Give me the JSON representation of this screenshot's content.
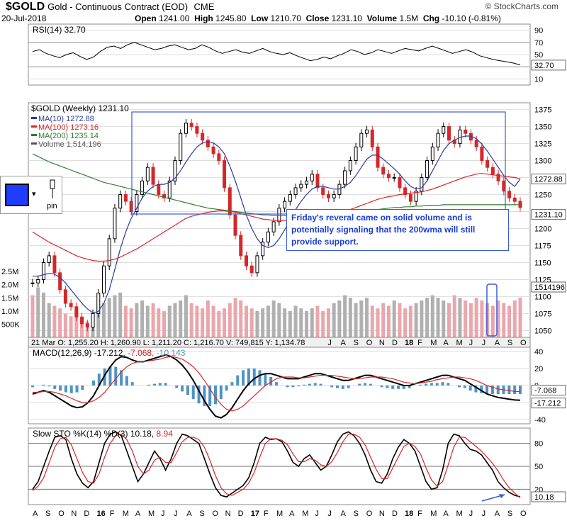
{
  "header": {
    "symbol": "$GOLD",
    "description": "Gold - Continuous Contract (EOD)",
    "exchange": "CME",
    "date": "20-Jul-2018",
    "brand": "© StockCharts.com",
    "open_label": "Open",
    "open": "1241.00",
    "high_label": "High",
    "high": "1245.80",
    "low_label": "Low",
    "low": "1210.70",
    "close_label": "Close",
    "close": "1231.10",
    "volume_label": "Volume",
    "volume": "1.5M",
    "chg_label": "Chg",
    "chg": "-10.10 (-0.81%)"
  },
  "rsi_panel": {
    "label": "RSI(14) 32.70",
    "value_tag": "32.70",
    "ticks": [
      "90",
      "70",
      "50",
      "30",
      "10"
    ]
  },
  "price_panel": {
    "title": "$GOLD (Weekly) 1231.10",
    "legend": [
      {
        "text": "MA(10) 1272.88",
        "color": "#2b3a9c"
      },
      {
        "text": "MA(100) 1273.16",
        "color": "#d62728"
      },
      {
        "text": "MA(200) 1235.14",
        "color": "#2e7d32"
      },
      {
        "text": "Volume 1,514,196",
        "color": "#555555"
      }
    ],
    "tags": [
      "1272.88",
      "1231.10",
      "1514196"
    ],
    "price_ticks": [
      "1375",
      "1350",
      "1325",
      "1300",
      "1275",
      "1250",
      "1225",
      "1200",
      "1175",
      "1150",
      "1125",
      "1100",
      "1075",
      "1050"
    ],
    "volume_ticks": [
      "2.5M",
      "2.0M",
      "1.5M",
      "1.0M",
      "500K"
    ],
    "readout": "21 Mar O: 1,255.20   H: 1,260.90   L: 1,211.20   C: 1,216.70   V: 749,815   Y: 1,134.78"
  },
  "macd_panel": {
    "label": "MACD(12,26,9)",
    "macd": "-17.212",
    "signal": "-7.068",
    "hist": "-10.143",
    "ticks": [
      "40",
      "20",
      "0",
      "-20",
      "-40"
    ],
    "tags": [
      "-7.068",
      "-17.212"
    ]
  },
  "sto_panel": {
    "label": "Slow STO %K(14) %D(3)",
    "k": "10.18",
    "d": "8.94",
    "ticks": [
      "80",
      "50",
      "20"
    ],
    "tag": "10.18"
  },
  "annotation": "Friday's reveral came on solid volume and is potentially signaling that the 200wma will still provide support.",
  "widget": {
    "pin_label": "pin"
  },
  "x_axis": [
    "A",
    "S",
    "O",
    "N",
    "D",
    "16",
    "F",
    "M",
    "A",
    "M",
    "J",
    "J",
    "A",
    "S",
    "O",
    "N",
    "D",
    "17",
    "F",
    "M",
    "A",
    "M",
    "J",
    "J",
    "A",
    "S",
    "O",
    "N",
    "D",
    "18",
    "F",
    "M",
    "A",
    "M",
    "J",
    "J",
    "A",
    "S",
    "O"
  ],
  "chart_data": [
    {
      "type": "line",
      "title": "RSI(14)",
      "ylim": [
        0,
        100
      ],
      "series": [
        {
          "name": "RSI(14)",
          "values": [
            55,
            58,
            52,
            48,
            45,
            50,
            53,
            47,
            42,
            46,
            55,
            62,
            64,
            60,
            66,
            70,
            66,
            62,
            58,
            60,
            64,
            66,
            62,
            58,
            60,
            66,
            62,
            56,
            52,
            55,
            58,
            54,
            52,
            56,
            60,
            55,
            52,
            50,
            53,
            48,
            44,
            40,
            42,
            46,
            43,
            48,
            52,
            58,
            55,
            50,
            53,
            58,
            55,
            52,
            56,
            60,
            58,
            56,
            60,
            64,
            60,
            56,
            52,
            55,
            58,
            54,
            48,
            45,
            42,
            40,
            38,
            36,
            33
          ]
        }
      ]
    },
    {
      "type": "candlestick",
      "title": "$GOLD (Weekly)",
      "ylim": [
        1040,
        1385
      ],
      "series": [
        {
          "name": "Close",
          "values": [
            1120,
            1125,
            1150,
            1160,
            1135,
            1110,
            1090,
            1085,
            1070,
            1060,
            1055,
            1075,
            1105,
            1145,
            1185,
            1230,
            1250,
            1240,
            1225,
            1250,
            1270,
            1290,
            1265,
            1250,
            1245,
            1270,
            1300,
            1340,
            1355,
            1350,
            1340,
            1330,
            1320,
            1310,
            1300,
            1260,
            1220,
            1190,
            1160,
            1145,
            1135,
            1160,
            1180,
            1195,
            1210,
            1230,
            1240,
            1250,
            1260,
            1265,
            1270,
            1280,
            1260,
            1250,
            1245,
            1250,
            1265,
            1285,
            1300,
            1320,
            1340,
            1345,
            1320,
            1290,
            1280,
            1275,
            1275,
            1260,
            1250,
            1240,
            1255,
            1275,
            1300,
            1320,
            1340,
            1350,
            1330,
            1325,
            1345,
            1340,
            1330,
            1320,
            1300,
            1290,
            1280,
            1270,
            1255,
            1245,
            1240,
            1231
          ]
        },
        {
          "name": "MA(10)",
          "values": [
            1130,
            1130,
            1132,
            1134,
            1133,
            1128,
            1120,
            1110,
            1100,
            1090,
            1082,
            1076,
            1078,
            1090,
            1110,
            1140,
            1170,
            1195,
            1215,
            1230,
            1245,
            1255,
            1262,
            1265,
            1265,
            1268,
            1274,
            1285,
            1298,
            1310,
            1320,
            1326,
            1328,
            1326,
            1320,
            1310,
            1292,
            1270,
            1245,
            1220,
            1200,
            1185,
            1175,
            1172,
            1175,
            1185,
            1198,
            1212,
            1228,
            1240,
            1250,
            1258,
            1262,
            1262,
            1260,
            1258,
            1258,
            1262,
            1268,
            1278,
            1290,
            1302,
            1308,
            1308,
            1302,
            1295,
            1288,
            1280,
            1270,
            1262,
            1258,
            1260,
            1270,
            1285,
            1300,
            1315,
            1325,
            1330,
            1334,
            1336,
            1336,
            1332,
            1324,
            1314,
            1302,
            1290,
            1278,
            1268,
            1262,
            1272.88
          ]
        },
        {
          "name": "MA(100)",
          "values": [
            1195,
            1190,
            1185,
            1180,
            1176,
            1172,
            1168,
            1164,
            1160,
            1157,
            1155,
            1153,
            1152,
            1152,
            1153,
            1155,
            1158,
            1162,
            1166,
            1170,
            1175,
            1180,
            1185,
            1190,
            1195,
            1200,
            1205,
            1210,
            1215,
            1218,
            1220,
            1222,
            1224,
            1225,
            1226,
            1226,
            1225,
            1224,
            1222,
            1220,
            1218,
            1216,
            1214,
            1213,
            1212,
            1212,
            1212,
            1213,
            1214,
            1215,
            1216,
            1218,
            1219,
            1220,
            1221,
            1222,
            1224,
            1226,
            1228,
            1231,
            1234,
            1237,
            1240,
            1243,
            1245,
            1247,
            1248,
            1250,
            1251,
            1252,
            1253,
            1254,
            1256,
            1258,
            1261,
            1264,
            1267,
            1270,
            1273,
            1276,
            1278,
            1280,
            1281,
            1280,
            1279,
            1278,
            1277,
            1276,
            1275,
            1273.16
          ]
        },
        {
          "name": "MA(200)",
          "values": [
            1310,
            1306,
            1302,
            1298,
            1295,
            1292,
            1289,
            1286,
            1283,
            1280,
            1277,
            1274,
            1271,
            1268,
            1266,
            1264,
            1262,
            1260,
            1258,
            1256,
            1254,
            1252,
            1250,
            1248,
            1246,
            1244,
            1242,
            1240,
            1238,
            1236,
            1234,
            1232,
            1230,
            1229,
            1228,
            1227,
            1226,
            1225,
            1224,
            1223,
            1222,
            1221,
            1220,
            1220,
            1219,
            1219,
            1219,
            1218,
            1218,
            1218,
            1218,
            1218,
            1219,
            1219,
            1220,
            1220,
            1221,
            1222,
            1223,
            1224,
            1225,
            1226,
            1227,
            1228,
            1229,
            1230,
            1231,
            1231,
            1232,
            1232,
            1233,
            1233,
            1234,
            1234,
            1234,
            1235,
            1235,
            1235,
            1235,
            1235,
            1235,
            1235,
            1235,
            1235,
            1235,
            1235,
            1235,
            1235,
            1235,
            1235.14
          ]
        },
        {
          "name": "Volume",
          "values": [
            1.6,
            1.9,
            1.7,
            1.3,
            1.2,
            1.1,
            0.9,
            0.8,
            1.0,
            0.7,
            0.6,
            0.8,
            1.2,
            1.3,
            1.5,
            1.6,
            1.7,
            1.2,
            1.1,
            1.3,
            1.4,
            1.2,
            1.3,
            1.1,
            1.0,
            1.2,
            1.3,
            1.4,
            1.6,
            1.3,
            1.2,
            1.1,
            1.4,
            1.2,
            1.0,
            1.1,
            1.3,
            1.5,
            1.4,
            1.2,
            1.1,
            1.0,
            1.1,
            1.2,
            1.4,
            1.3,
            1.1,
            1.0,
            1.2,
            1.1,
            1.0,
            1.1,
            1.2,
            1.0,
            1.1,
            1.3,
            1.4,
            1.6,
            1.5,
            1.3,
            1.4,
            1.5,
            1.2,
            1.1,
            1.3,
            1.2,
            1.4,
            1.3,
            1.1,
            1.2,
            1.3,
            1.4,
            1.5,
            1.6,
            1.5,
            1.4,
            1.3,
            1.6,
            1.5,
            1.4,
            1.3,
            1.5,
            1.4,
            1.3,
            1.2,
            1.4,
            1.3,
            1.2,
            1.4,
            1.51
          ]
        }
      ]
    },
    {
      "type": "line",
      "title": "MACD(12,26,9)",
      "ylim": [
        -45,
        45
      ],
      "series": [
        {
          "name": "MACD",
          "values": [
            -10,
            -8,
            -6,
            -8,
            -12,
            -16,
            -20,
            -24,
            -26,
            -25,
            -20,
            -12,
            0,
            12,
            22,
            30,
            34,
            33,
            30,
            28,
            28,
            30,
            32,
            34,
            36,
            34,
            30,
            24,
            16,
            6,
            -6,
            -18,
            -28,
            -36,
            -38,
            -34,
            -26,
            -16,
            -6,
            2,
            8,
            12,
            14,
            14,
            12,
            10,
            8,
            8,
            8,
            10,
            12,
            14,
            14,
            12,
            10,
            8,
            6,
            6,
            8,
            10,
            12,
            12,
            10,
            8,
            6,
            4,
            2,
            0,
            0,
            2,
            4,
            6,
            8,
            10,
            12,
            12,
            10,
            8,
            6,
            2,
            -2,
            -6,
            -10,
            -12,
            -14,
            -15,
            -16,
            -17,
            -17.212
          ]
        },
        {
          "name": "Signal",
          "values": [
            -8,
            -8,
            -7,
            -7,
            -8,
            -10,
            -12,
            -15,
            -18,
            -20,
            -20,
            -18,
            -14,
            -8,
            0,
            8,
            16,
            22,
            26,
            28,
            28,
            29,
            30,
            31,
            33,
            34,
            33,
            31,
            27,
            22,
            15,
            6,
            -4,
            -14,
            -22,
            -28,
            -30,
            -28,
            -24,
            -18,
            -12,
            -6,
            0,
            4,
            8,
            10,
            10,
            10,
            9,
            9,
            10,
            11,
            12,
            12,
            12,
            11,
            10,
            9,
            8,
            8,
            9,
            10,
            10,
            10,
            9,
            8,
            6,
            4,
            3,
            2,
            3,
            4,
            5,
            7,
            8,
            9,
            10,
            10,
            9,
            8,
            6,
            3,
            0,
            -2,
            -4,
            -5,
            -6,
            -7,
            -7.068
          ]
        }
      ]
    },
    {
      "type": "line",
      "title": "Slow STO %K(14) %D(3)",
      "ylim": [
        0,
        100
      ],
      "series": [
        {
          "name": "%K",
          "values": [
            20,
            30,
            50,
            70,
            88,
            90,
            85,
            60,
            40,
            28,
            22,
            30,
            55,
            80,
            92,
            95,
            90,
            70,
            50,
            30,
            40,
            55,
            70,
            60,
            45,
            60,
            80,
            92,
            90,
            85,
            80,
            60,
            40,
            22,
            12,
            10,
            15,
            20,
            25,
            35,
            55,
            80,
            88,
            85,
            86,
            82,
            70,
            55,
            50,
            60,
            65,
            55,
            45,
            50,
            65,
            82,
            92,
            95,
            90,
            80,
            65,
            45,
            30,
            28,
            40,
            60,
            75,
            85,
            80,
            70,
            50,
            30,
            20,
            22,
            45,
            80,
            92,
            90,
            80,
            72,
            70,
            65,
            55,
            45,
            30,
            22,
            16,
            12,
            10.18
          ]
        },
        {
          "name": "%D",
          "values": [
            18,
            24,
            35,
            55,
            75,
            86,
            88,
            78,
            60,
            42,
            30,
            28,
            40,
            62,
            80,
            90,
            92,
            85,
            70,
            50,
            40,
            45,
            58,
            62,
            55,
            55,
            68,
            82,
            88,
            88,
            85,
            75,
            58,
            38,
            22,
            14,
            12,
            16,
            20,
            28,
            42,
            62,
            80,
            86,
            86,
            84,
            78,
            66,
            56,
            56,
            60,
            58,
            52,
            50,
            56,
            68,
            82,
            92,
            92,
            88,
            78,
            62,
            46,
            34,
            34,
            48,
            62,
            76,
            80,
            76,
            66,
            48,
            32,
            24,
            30,
            52,
            75,
            88,
            88,
            82,
            76,
            70,
            62,
            54,
            44,
            32,
            22,
            15,
            8.94
          ]
        }
      ]
    }
  ]
}
